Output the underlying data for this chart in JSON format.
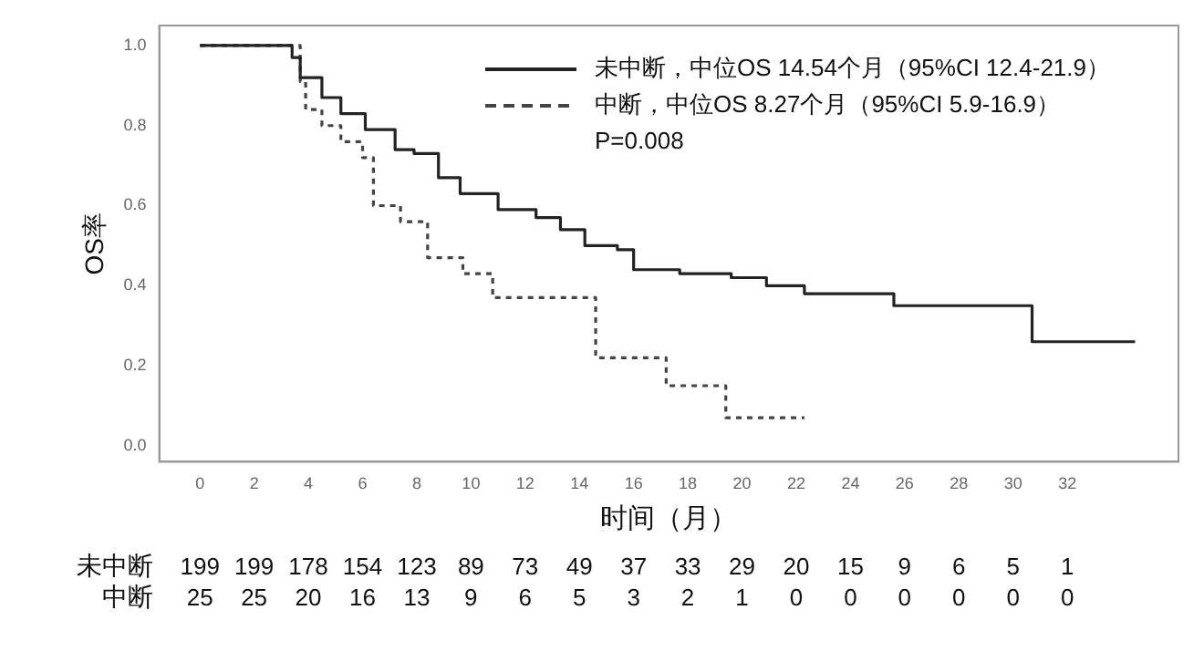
{
  "chart_data": [
    {
      "type": "step",
      "xlabel": "时间（月）",
      "ylabel": "OS率",
      "xlim": [
        -1.5,
        36.1
      ],
      "ylim": [
        -0.04,
        1.05
      ],
      "xticks": [
        0,
        2,
        4,
        6,
        8,
        10,
        12,
        14,
        16,
        18,
        20,
        22,
        24,
        26,
        28,
        30,
        32
      ],
      "yticks": [
        {
          "value": 0,
          "label": "0.0"
        },
        {
          "value": 0.2,
          "label": "0.2"
        },
        {
          "value": 0.4,
          "label": "0.4"
        },
        {
          "value": 0.6,
          "label": "0.6"
        },
        {
          "value": 0.8,
          "label": "0.8"
        },
        {
          "value": 1,
          "label": "1.0"
        }
      ],
      "legend": "top right",
      "marker": "none",
      "series": [
        {
          "name": "未中断，中位OS 14.54个月（95%CI 12.4-21.9）",
          "color": "#222222",
          "line_style": "solid",
          "x": [
            0,
            3.0,
            3.4,
            3.7,
            4.5,
            5.2,
            6.1,
            7.2,
            7.9,
            8.8,
            9.6,
            11.0,
            12.4,
            13.3,
            14.2,
            15.4,
            16.0,
            17.7,
            19.6,
            20.9,
            22.3,
            25.6,
            30.7,
            34.5
          ],
          "values": [
            1,
            1,
            0.97,
            0.92,
            0.87,
            0.83,
            0.79,
            0.74,
            0.73,
            0.67,
            0.63,
            0.59,
            0.57,
            0.54,
            0.5,
            0.49,
            0.44,
            0.43,
            0.42,
            0.4,
            0.38,
            0.35,
            0.26,
            0.26
          ]
        },
        {
          "name": "中断，中位OS 8.27个月（95%CI 5.9-16.9）",
          "color": "#444444",
          "line_style": "dashed",
          "x": [
            0,
            3.7,
            3.9,
            4.5,
            5.2,
            6.0,
            6.4,
            7.4,
            8.4,
            9.7,
            10.8,
            14.6,
            17.2,
            19.4,
            22.3
          ],
          "values": [
            1,
            0.91,
            0.84,
            0.8,
            0.76,
            0.72,
            0.6,
            0.56,
            0.47,
            0.43,
            0.37,
            0.22,
            0.15,
            0.07,
            0.07
          ]
        }
      ],
      "annotations": [
        "P=0.008"
      ]
    },
    {
      "type": "other",
      "y_categories": [
        "未中断",
        "中断"
      ],
      "cell_labels": [
        [
          "199",
          "199",
          "178",
          "154",
          "123",
          "89",
          "73",
          "49",
          "37",
          "33",
          "29",
          "20",
          "15",
          "9",
          "6",
          "5",
          "1"
        ],
        [
          "25",
          "25",
          "20",
          "16",
          "13",
          "9",
          "6",
          "5",
          "3",
          "2",
          "1",
          "0",
          "0",
          "0",
          "0",
          "0",
          "0"
        ]
      ]
    }
  ]
}
